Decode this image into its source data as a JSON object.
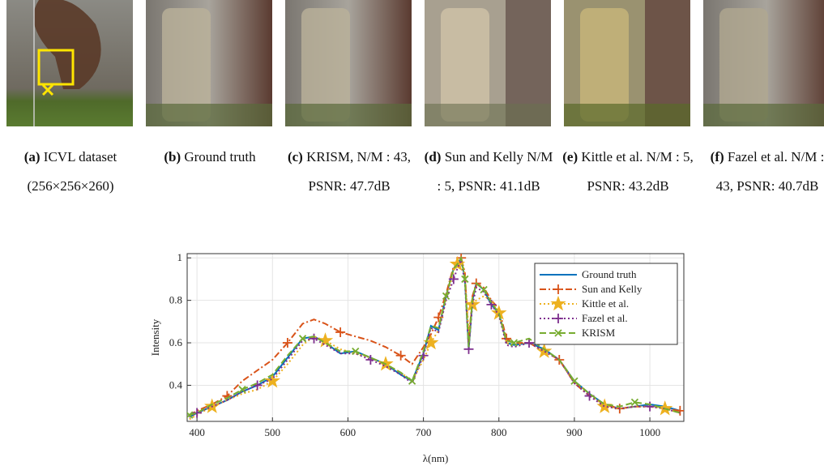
{
  "captions": [
    {
      "label": "(a)",
      "text": "ICVL dataset (256×256×260)"
    },
    {
      "label": "(b)",
      "text": "Ground truth"
    },
    {
      "label": "(c)",
      "text": "KRISM, N/M : 43, PSNR: 47.7dB"
    },
    {
      "label": "(d)",
      "text": "Sun and Kelly N/M : 5, PSNR: 41.1dB"
    },
    {
      "label": "(e)",
      "text": "Kittle et al. N/M : 5, PSNR: 43.2dB"
    },
    {
      "label": "(f)",
      "text": "Fazel et al. N/M : 43, PSNR: 40.7dB"
    }
  ],
  "chart_data": {
    "type": "line",
    "x_label": "λ(nm)",
    "y_label": "Intensity",
    "x": [
      390,
      400,
      420,
      440,
      460,
      480,
      500,
      520,
      540,
      555,
      570,
      590,
      610,
      630,
      650,
      670,
      685,
      700,
      710,
      720,
      730,
      740,
      745,
      750,
      755,
      760,
      765,
      770,
      780,
      790,
      800,
      810,
      820,
      840,
      860,
      880,
      900,
      920,
      940,
      960,
      980,
      1000,
      1020,
      1040
    ],
    "series": [
      {
        "name": "Ground truth",
        "color": "#0072bd",
        "line_style": "solid",
        "marker": "none",
        "values": [
          0.25,
          0.27,
          0.3,
          0.33,
          0.37,
          0.4,
          0.44,
          0.53,
          0.62,
          0.63,
          0.6,
          0.55,
          0.56,
          0.53,
          0.5,
          0.45,
          0.42,
          0.55,
          0.68,
          0.66,
          0.82,
          0.95,
          0.97,
          1.0,
          0.9,
          0.57,
          0.8,
          0.88,
          0.85,
          0.78,
          0.74,
          0.6,
          0.59,
          0.6,
          0.57,
          0.52,
          0.42,
          0.36,
          0.31,
          0.29,
          0.3,
          0.31,
          0.3,
          0.28
        ]
      },
      {
        "name": "Sun and Kelly",
        "color": "#d95319",
        "line_style": "dashdot",
        "marker": "plus",
        "values": [
          0.26,
          0.28,
          0.31,
          0.35,
          0.42,
          0.47,
          0.52,
          0.6,
          0.69,
          0.71,
          0.69,
          0.65,
          0.63,
          0.61,
          0.58,
          0.54,
          0.5,
          0.58,
          0.64,
          0.72,
          0.83,
          0.96,
          0.97,
          1.0,
          0.93,
          0.6,
          0.82,
          0.88,
          0.86,
          0.8,
          0.76,
          0.62,
          0.6,
          0.6,
          0.56,
          0.52,
          0.41,
          0.35,
          0.31,
          0.29,
          0.3,
          0.3,
          0.29,
          0.28
        ]
      },
      {
        "name": "Kittle et al.",
        "color": "#edb120",
        "line_style": "dotted",
        "marker": "star",
        "values": [
          0.24,
          0.26,
          0.3,
          0.33,
          0.36,
          0.38,
          0.42,
          0.5,
          0.59,
          0.63,
          0.61,
          0.57,
          0.55,
          0.53,
          0.5,
          0.46,
          0.42,
          0.52,
          0.6,
          0.66,
          0.8,
          0.94,
          0.97,
          1.0,
          0.92,
          0.65,
          0.78,
          0.8,
          0.82,
          0.8,
          0.74,
          0.6,
          0.59,
          0.6,
          0.56,
          0.52,
          0.42,
          0.36,
          0.3,
          0.29,
          0.3,
          0.3,
          0.29,
          0.27
        ]
      },
      {
        "name": "Fazel et al.",
        "color": "#7e2f8e",
        "line_style": "dotted",
        "marker": "plus",
        "values": [
          0.25,
          0.27,
          0.3,
          0.33,
          0.37,
          0.4,
          0.43,
          0.52,
          0.61,
          0.62,
          0.59,
          0.55,
          0.55,
          0.52,
          0.49,
          0.45,
          0.41,
          0.54,
          0.67,
          0.65,
          0.8,
          0.9,
          0.95,
          0.99,
          0.88,
          0.57,
          0.78,
          0.86,
          0.84,
          0.78,
          0.73,
          0.59,
          0.58,
          0.6,
          0.56,
          0.52,
          0.41,
          0.35,
          0.3,
          0.29,
          0.3,
          0.3,
          0.29,
          0.27
        ]
      },
      {
        "name": "KRISM",
        "color": "#77ac30",
        "line_style": "dashed",
        "marker": "x",
        "values": [
          0.26,
          0.27,
          0.31,
          0.34,
          0.38,
          0.41,
          0.45,
          0.54,
          0.62,
          0.63,
          0.6,
          0.56,
          0.56,
          0.53,
          0.5,
          0.46,
          0.42,
          0.56,
          0.68,
          0.67,
          0.82,
          0.95,
          0.97,
          1.0,
          0.9,
          0.58,
          0.81,
          0.88,
          0.85,
          0.79,
          0.74,
          0.61,
          0.6,
          0.62,
          0.57,
          0.52,
          0.42,
          0.36,
          0.31,
          0.3,
          0.32,
          0.31,
          0.29,
          0.27
        ]
      }
    ],
    "xlim": [
      387,
      1045
    ],
    "ylim": [
      0.23,
      1.02
    ],
    "xticks": [
      400,
      500,
      600,
      700,
      800,
      900,
      1000
    ],
    "yticks": [
      0.4,
      0.6,
      0.8,
      1
    ],
    "grid": true,
    "legend": "upper right"
  }
}
